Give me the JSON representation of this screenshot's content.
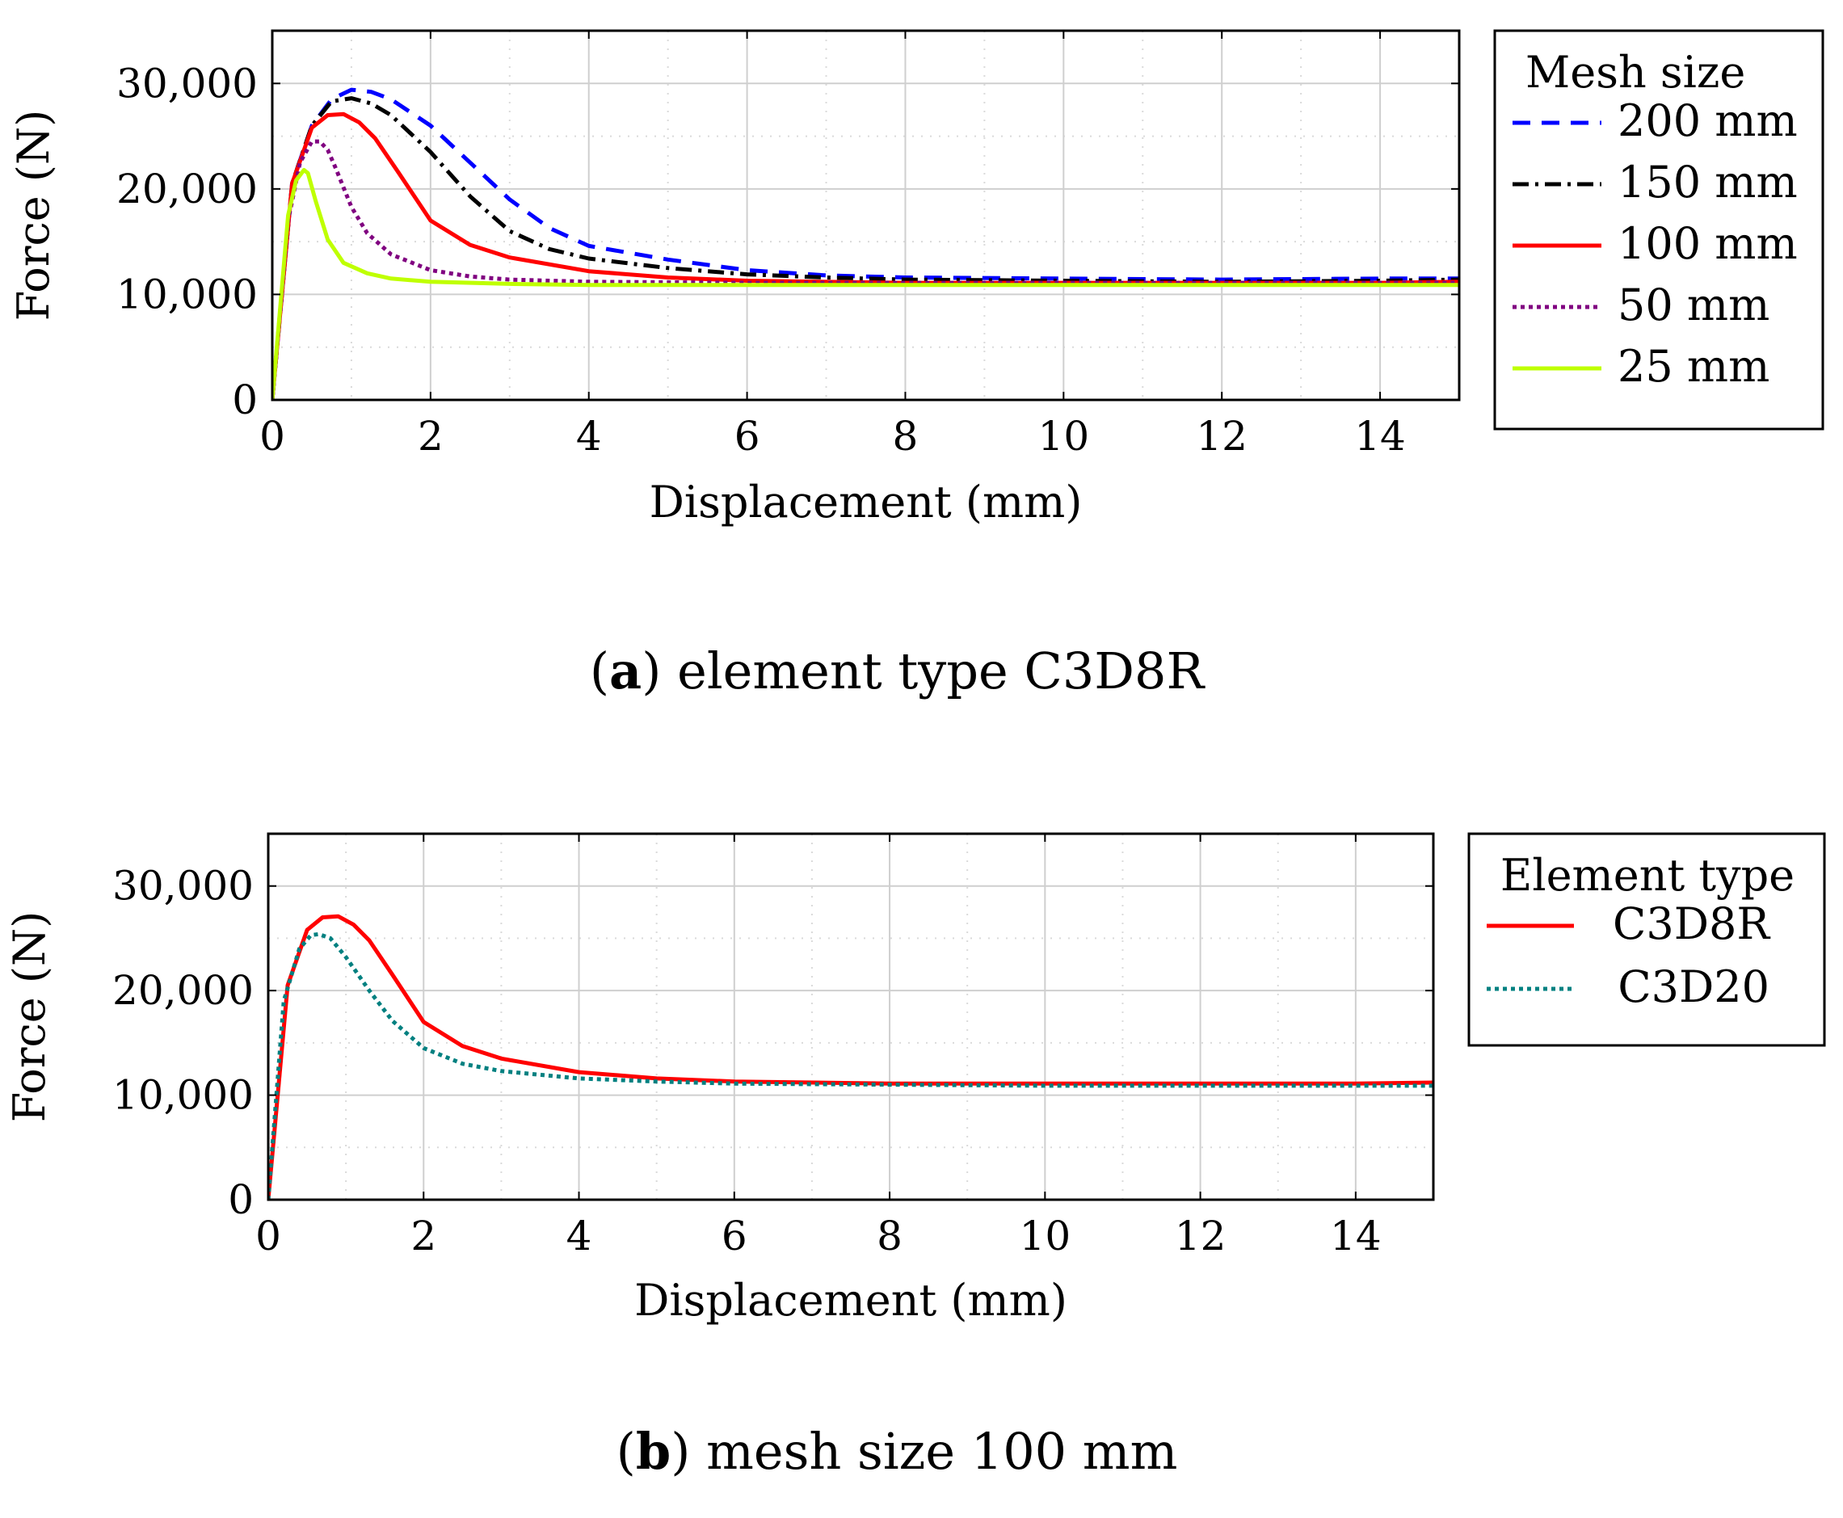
{
  "chart_data": [
    {
      "id": "a",
      "type": "line",
      "caption_letter": "a",
      "caption_text": "element type C3D8R",
      "xlabel": "Displacement (mm)",
      "ylabel": "Force (N)",
      "xlim": [
        0,
        15
      ],
      "ylim": [
        0,
        35000
      ],
      "xticks": [
        0,
        2,
        4,
        6,
        8,
        10,
        12,
        14
      ],
      "xtick_labels": [
        "0",
        "2",
        "4",
        "6",
        "8",
        "10",
        "12",
        "14"
      ],
      "yticks": [
        0,
        10000,
        20000,
        30000
      ],
      "ytick_labels": [
        "0",
        "10,000",
        "20,000",
        "30,000"
      ],
      "grid": true,
      "legend_title": "Mesh size",
      "legend_position": "outside-right",
      "series": [
        {
          "name": "200 mm",
          "color": "#0000ff",
          "dash": "22 14",
          "x": [
            0,
            0.25,
            0.5,
            0.75,
            1.0,
            1.25,
            1.5,
            2.0,
            2.5,
            3.0,
            3.5,
            4.0,
            5.0,
            6.0,
            7.0,
            8.0,
            10.0,
            12.0,
            14.0,
            15.0
          ],
          "y": [
            0,
            20500,
            26000,
            28500,
            29400,
            29200,
            28500,
            26000,
            22500,
            19000,
            16300,
            14600,
            13300,
            12300,
            11800,
            11600,
            11500,
            11400,
            11500,
            11500
          ]
        },
        {
          "name": "150 mm",
          "color": "#000000",
          "dash": "20 8 4 8",
          "x": [
            0,
            0.25,
            0.5,
            0.75,
            1.0,
            1.25,
            1.5,
            2.0,
            2.5,
            3.0,
            3.5,
            4.0,
            5.0,
            6.0,
            7.0,
            8.0,
            10.0,
            12.0,
            14.0,
            15.0
          ],
          "y": [
            0,
            20500,
            26000,
            28300,
            28600,
            28100,
            27000,
            23500,
            19300,
            16000,
            14300,
            13400,
            12500,
            11900,
            11600,
            11400,
            11300,
            11200,
            11300,
            11400
          ]
        },
        {
          "name": "100 mm",
          "color": "#ff0000",
          "dash": "",
          "x": [
            0,
            0.25,
            0.5,
            0.7,
            0.9,
            1.1,
            1.3,
            1.6,
            2.0,
            2.5,
            3.0,
            4.0,
            5.0,
            6.0,
            8.0,
            10.0,
            12.0,
            14.0,
            15.0
          ],
          "y": [
            0,
            20500,
            25800,
            27000,
            27100,
            26300,
            24800,
            21500,
            17000,
            14700,
            13500,
            12200,
            11600,
            11300,
            11100,
            11100,
            11100,
            11100,
            11200
          ]
        },
        {
          "name": "50 mm",
          "color": "#800080",
          "dash": "5 5",
          "x": [
            0,
            0.2,
            0.35,
            0.5,
            0.6,
            0.7,
            0.8,
            1.0,
            1.2,
            1.5,
            2.0,
            2.5,
            3.0,
            4.0,
            6.0,
            8.0,
            10.0,
            12.0,
            14.0,
            15.0
          ],
          "y": [
            0,
            17000,
            22500,
            24500,
            24500,
            23700,
            22000,
            18300,
            15800,
            13800,
            12300,
            11700,
            11400,
            11200,
            11100,
            11100,
            11100,
            11100,
            11100,
            11100
          ]
        },
        {
          "name": "25 mm",
          "color": "#bfff00",
          "dash": "",
          "x": [
            0,
            0.2,
            0.3,
            0.4,
            0.45,
            0.55,
            0.7,
            0.9,
            1.2,
            1.5,
            2.0,
            3.0,
            4.0,
            6.0,
            8.0,
            10.0,
            12.0,
            14.0,
            15.0
          ],
          "y": [
            0,
            17500,
            20800,
            21800,
            21500,
            18800,
            15200,
            13000,
            12000,
            11500,
            11200,
            11000,
            10900,
            10900,
            10900,
            10900,
            10900,
            10900,
            10900
          ]
        }
      ]
    },
    {
      "id": "b",
      "type": "line",
      "caption_letter": "b",
      "caption_text": "mesh size 100 mm",
      "xlabel": "Displacement (mm)",
      "ylabel": "Force (N)",
      "xlim": [
        0,
        15
      ],
      "ylim": [
        0,
        35000
      ],
      "xticks": [
        0,
        2,
        4,
        6,
        8,
        10,
        12,
        14
      ],
      "xtick_labels": [
        "0",
        "2",
        "4",
        "6",
        "8",
        "10",
        "12",
        "14"
      ],
      "yticks": [
        0,
        10000,
        20000,
        30000
      ],
      "ytick_labels": [
        "0",
        "10,000",
        "20,000",
        "30,000"
      ],
      "grid": true,
      "legend_title": "Element type",
      "legend_position": "outside-right",
      "series": [
        {
          "name": "C3D8R",
          "color": "#ff0000",
          "dash": "",
          "x": [
            0,
            0.25,
            0.5,
            0.7,
            0.9,
            1.1,
            1.3,
            1.6,
            2.0,
            2.5,
            3.0,
            4.0,
            5.0,
            6.0,
            8.0,
            10.0,
            12.0,
            14.0,
            15.0
          ],
          "y": [
            0,
            20500,
            25800,
            27000,
            27100,
            26300,
            24800,
            21500,
            17000,
            14700,
            13500,
            12200,
            11600,
            11300,
            11100,
            11100,
            11100,
            11100,
            11200
          ]
        },
        {
          "name": "C3D20",
          "color": "#008080",
          "dash": "5 5",
          "x": [
            0,
            0.2,
            0.4,
            0.55,
            0.65,
            0.8,
            1.0,
            1.3,
            1.6,
            2.0,
            2.5,
            3.0,
            4.0,
            5.0,
            6.0,
            8.0,
            10.0,
            12.0,
            14.0,
            15.0
          ],
          "y": [
            0,
            19000,
            24000,
            25300,
            25400,
            25000,
            23200,
            20000,
            17100,
            14500,
            13000,
            12300,
            11600,
            11300,
            11100,
            11000,
            10900,
            10900,
            10900,
            10900
          ]
        }
      ]
    }
  ]
}
